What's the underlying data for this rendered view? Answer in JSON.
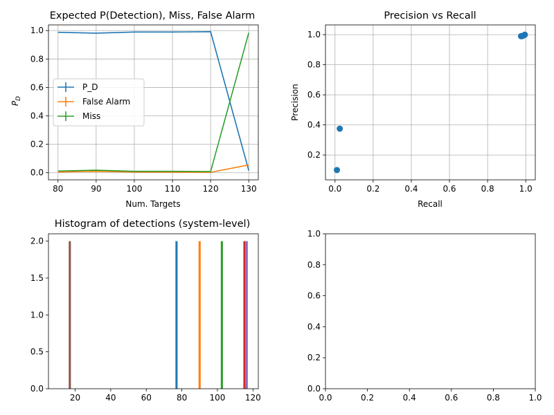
{
  "colors": {
    "c0": "#1f77b4",
    "c1": "#ff7f0e",
    "c2": "#2ca02c",
    "c3": "#d62728",
    "c4": "#9467bd",
    "c5": "#8c564b"
  },
  "chart_data": [
    {
      "type": "line",
      "title": "Expected P(Detection), Miss, False Alarm",
      "xlabel": "Num. Targets",
      "ylabel": "P_D",
      "x": [
        80,
        90,
        100,
        110,
        120,
        130
      ],
      "xlim": [
        77.5,
        132.5
      ],
      "ylim": [
        -0.05,
        1.04
      ],
      "xticks": [
        80,
        90,
        100,
        110,
        120,
        130
      ],
      "yticks": [
        0.0,
        0.2,
        0.4,
        0.6,
        0.8,
        1.0
      ],
      "ytick_labels": [
        "0.0",
        "0.2",
        "0.4",
        "0.6",
        "0.8",
        "1.0"
      ],
      "grid": true,
      "legend": "center-left",
      "series": [
        {
          "name": "P_D",
          "color": "#1f77b4",
          "values": [
            0.988,
            0.982,
            0.99,
            0.99,
            0.992,
            0.015
          ]
        },
        {
          "name": "False Alarm",
          "color": "#ff7f0e",
          "values": [
            0.005,
            0.01,
            0.005,
            0.004,
            0.003,
            0.055
          ]
        },
        {
          "name": "Miss",
          "color": "#2ca02c",
          "values": [
            0.012,
            0.018,
            0.01,
            0.01,
            0.008,
            0.985
          ]
        }
      ]
    },
    {
      "type": "scatter",
      "title": "Precision vs Recall",
      "xlabel": "Recall",
      "ylabel": "Precision",
      "xlim": [
        -0.05,
        1.05
      ],
      "ylim": [
        0.035,
        1.065
      ],
      "xticks": [
        0.0,
        0.2,
        0.4,
        0.6,
        0.8,
        1.0
      ],
      "xtick_labels": [
        "0.0",
        "0.2",
        "0.4",
        "0.6",
        "0.8",
        "1.0"
      ],
      "yticks": [
        0.2,
        0.4,
        0.6,
        0.8,
        1.0
      ],
      "ytick_labels": [
        "0.2",
        "0.4",
        "0.6",
        "0.8",
        "1.0"
      ],
      "grid": true,
      "points": [
        {
          "x": 0.01,
          "y": 0.1
        },
        {
          "x": 0.025,
          "y": 0.375
        },
        {
          "x": 0.975,
          "y": 0.99
        },
        {
          "x": 0.98,
          "y": 0.99
        },
        {
          "x": 0.99,
          "y": 0.995
        },
        {
          "x": 0.995,
          "y": 1.0
        }
      ]
    },
    {
      "type": "bar",
      "subtype": "histogram",
      "title": "Histogram of detections (system-level)",
      "xlim": [
        5,
        123
      ],
      "ylim": [
        0,
        2.1
      ],
      "xticks": [
        20,
        40,
        60,
        80,
        100,
        120
      ],
      "yticks": [
        0.0,
        0.5,
        1.0,
        1.5,
        2.0
      ],
      "ytick_labels": [
        "0.0",
        "0.5",
        "1.0",
        "1.5",
        "2.0"
      ],
      "grid": false,
      "bars": [
        {
          "x": 17,
          "value": 2,
          "color": "#8c564b"
        },
        {
          "x": 77,
          "value": 2,
          "color": "#1f77b4"
        },
        {
          "x": 90,
          "value": 2,
          "color": "#ff7f0e"
        },
        {
          "x": 102.5,
          "value": 2,
          "color": "#2ca02c"
        },
        {
          "x": 115.2,
          "value": 2,
          "color": "#d62728"
        },
        {
          "x": 116.5,
          "value": 2,
          "color": "#9467bd"
        }
      ]
    },
    {
      "type": "scatter",
      "title": "",
      "xlim": [
        0,
        1
      ],
      "ylim": [
        0,
        1
      ],
      "xticks": [
        0.0,
        0.2,
        0.4,
        0.6,
        0.8,
        1.0
      ],
      "xtick_labels": [
        "0.0",
        "0.2",
        "0.4",
        "0.6",
        "0.8",
        "1.0"
      ],
      "yticks": [
        0.0,
        0.2,
        0.4,
        0.6,
        0.8,
        1.0
      ],
      "ytick_labels": [
        "0.0",
        "0.2",
        "0.4",
        "0.6",
        "0.8",
        "1.0"
      ],
      "grid": false,
      "points": []
    }
  ]
}
